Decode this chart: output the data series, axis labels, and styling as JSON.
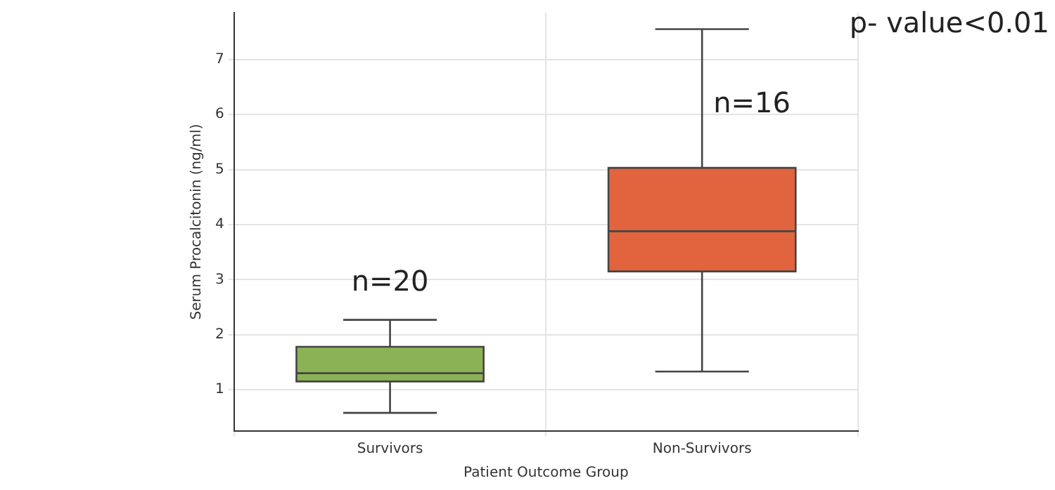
{
  "chart_data": {
    "type": "box",
    "xlabel": "Patient Outcome Group",
    "ylabel": "Serum Procalcitonin (ng/ml)",
    "categories": [
      "Survivors",
      "Non-Survivors"
    ],
    "colors": [
      "#8bb356",
      "#e2643e"
    ],
    "boxes": [
      {
        "low": 0.58,
        "q1": 1.15,
        "median": 1.3,
        "q3": 1.78,
        "high": 2.27
      },
      {
        "low": 1.33,
        "q1": 3.15,
        "median": 3.88,
        "q3": 5.03,
        "high": 7.55
      }
    ],
    "ylim": [
      0.25,
      7.85
    ],
    "yticks": [
      1,
      2,
      3,
      4,
      5,
      6,
      7
    ],
    "grid": true,
    "annotations": [
      "n=20",
      "n=16",
      "p- value<0.01"
    ]
  }
}
